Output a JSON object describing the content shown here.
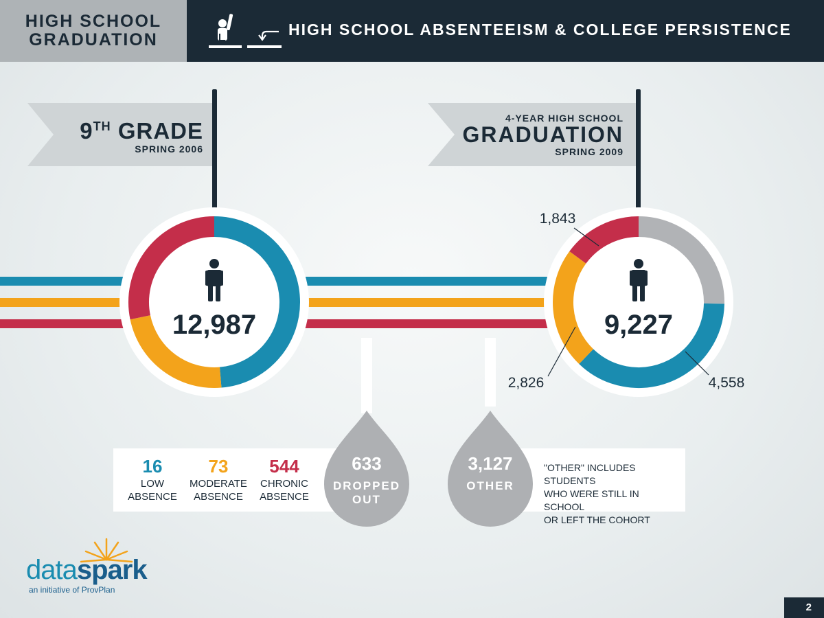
{
  "header": {
    "section_title": "HIGH SCHOOL\nGRADUATION",
    "main_title": "HIGH SCHOOL ABSENTEEISM & COLLEGE PERSISTENCE",
    "icons": [
      "student-raising-hand-icon",
      "return-arrow-icon"
    ]
  },
  "milestones": {
    "start": {
      "grade_num": "9",
      "grade_sup": "TH",
      "grade_word": "GRADE",
      "term": "SPRING 2006"
    },
    "end": {
      "pre": "4-YEAR HIGH SCHOOL",
      "title": "GRADUATION",
      "term": "SPRING 2009"
    }
  },
  "colors": {
    "low": "#1a8cb0",
    "moderate": "#f3a31b",
    "chronic": "#c42e4a",
    "other": "#b1b3b6",
    "dark": "#1b2a36"
  },
  "chart_data": [
    {
      "type": "pie",
      "center_value": "12,987",
      "slices": [
        {
          "key": "low",
          "value": 6320
        },
        {
          "key": "moderate",
          "value": 3000
        },
        {
          "key": "chronic",
          "value": 3667
        }
      ]
    },
    {
      "type": "pie",
      "center_value": "9,227",
      "slices": [
        {
          "key": "other",
          "value": 3127,
          "label": ""
        },
        {
          "key": "low",
          "value": 4558,
          "label": "4,558"
        },
        {
          "key": "moderate",
          "value": 2826,
          "label": "2,826"
        },
        {
          "key": "chronic",
          "value": 1843,
          "label": "1,843"
        }
      ]
    }
  ],
  "dropped_breakdown": [
    {
      "key": "low",
      "value": "16",
      "label": "LOW\nABSENCE"
    },
    {
      "key": "moderate",
      "value": "73",
      "label": "MODERATE\nABSENCE"
    },
    {
      "key": "chronic",
      "value": "544",
      "label": "CHRONIC\nABSENCE"
    }
  ],
  "dropped": {
    "value": "633",
    "label_1": "DROPPED",
    "label_2": "OUT"
  },
  "other": {
    "value": "3,127",
    "label": "OTHER",
    "note": "\"OTHER\" INCLUDES STUDENTS\nWHO WERE STILL IN SCHOOL\nOR LEFT THE COHORT"
  },
  "logo": {
    "brand_1": "data",
    "brand_2": "spark",
    "tagline": "an initiative of ProvPlan"
  },
  "footer": {
    "page": "2"
  }
}
